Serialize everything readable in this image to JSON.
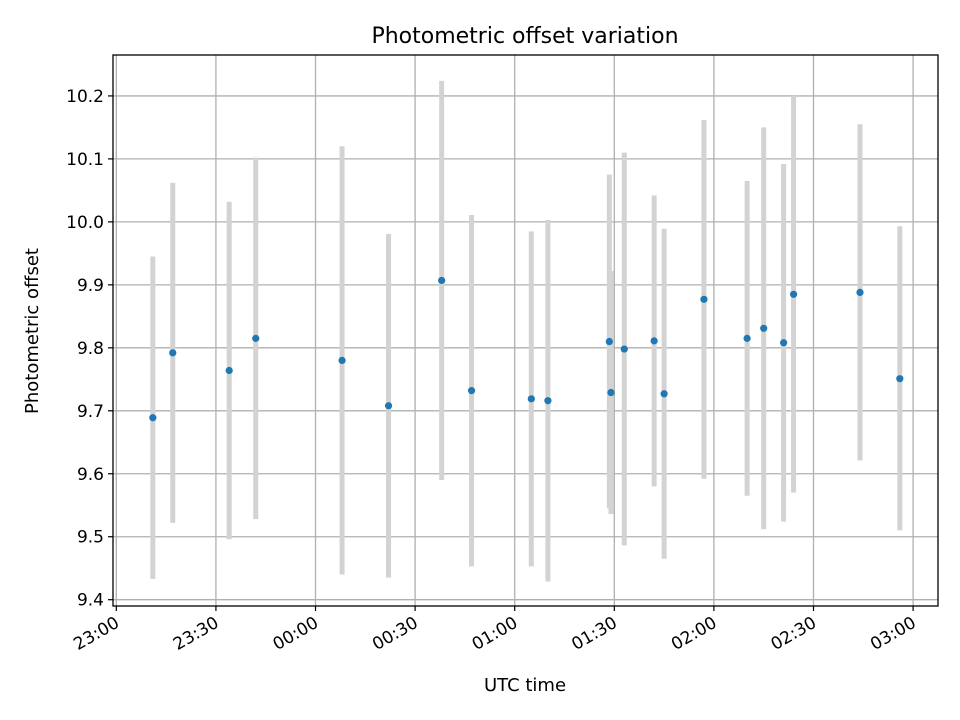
{
  "chart_data": {
    "type": "scatter",
    "title": "Photometric offset variation",
    "xlabel": "UTC time",
    "ylabel": "Photometric offset",
    "grid": true,
    "xlim": [
      "2000-01-01T22:59:00",
      "2000-01-02T03:07:30"
    ],
    "ylim": [
      9.39,
      10.265
    ],
    "x_ticks": [
      {
        "t": "2000-01-01T23:00:00",
        "label": "23:00"
      },
      {
        "t": "2000-01-01T23:30:00",
        "label": "23:30"
      },
      {
        "t": "2000-01-02T00:00:00",
        "label": "00:00"
      },
      {
        "t": "2000-01-02T00:30:00",
        "label": "00:30"
      },
      {
        "t": "2000-01-02T01:00:00",
        "label": "01:00"
      },
      {
        "t": "2000-01-02T01:30:00",
        "label": "01:30"
      },
      {
        "t": "2000-01-02T02:00:00",
        "label": "02:00"
      },
      {
        "t": "2000-01-02T02:30:00",
        "label": "02:30"
      },
      {
        "t": "2000-01-02T03:00:00",
        "label": "03:00"
      }
    ],
    "y_ticks": [
      {
        "v": 9.4,
        "label": "9.4"
      },
      {
        "v": 9.5,
        "label": "9.5"
      },
      {
        "v": 9.6,
        "label": "9.6"
      },
      {
        "v": 9.7,
        "label": "9.7"
      },
      {
        "v": 9.8,
        "label": "9.8"
      },
      {
        "v": 9.9,
        "label": "9.9"
      },
      {
        "v": 10.0,
        "label": "10.0"
      },
      {
        "v": 10.1,
        "label": "10.1"
      },
      {
        "v": 10.2,
        "label": "10.2"
      }
    ],
    "points": [
      {
        "t": "2000-01-01T23:11:00",
        "y": 9.689,
        "y_low": 9.433,
        "y_high": 9.945
      },
      {
        "t": "2000-01-01T23:17:00",
        "y": 9.792,
        "y_low": 9.522,
        "y_high": 10.062
      },
      {
        "t": "2000-01-01T23:34:00",
        "y": 9.764,
        "y_low": 9.496,
        "y_high": 10.032
      },
      {
        "t": "2000-01-01T23:42:00",
        "y": 9.815,
        "y_low": 9.528,
        "y_high": 10.102
      },
      {
        "t": "2000-01-02T00:08:00",
        "y": 9.78,
        "y_low": 9.44,
        "y_high": 10.12
      },
      {
        "t": "2000-01-02T00:22:00",
        "y": 9.708,
        "y_low": 9.435,
        "y_high": 9.981
      },
      {
        "t": "2000-01-02T00:38:00",
        "y": 9.907,
        "y_low": 9.59,
        "y_high": 10.224
      },
      {
        "t": "2000-01-02T00:47:00",
        "y": 9.732,
        "y_low": 9.453,
        "y_high": 10.011
      },
      {
        "t": "2000-01-02T01:05:00",
        "y": 9.719,
        "y_low": 9.453,
        "y_high": 9.985
      },
      {
        "t": "2000-01-02T01:10:00",
        "y": 9.716,
        "y_low": 9.429,
        "y_high": 10.003
      },
      {
        "t": "2000-01-02T01:28:30",
        "y": 9.81,
        "y_low": 9.545,
        "y_high": 10.075
      },
      {
        "t": "2000-01-02T01:29:00",
        "y": 9.729,
        "y_low": 9.536,
        "y_high": 9.922
      },
      {
        "t": "2000-01-02T01:33:00",
        "y": 9.798,
        "y_low": 9.486,
        "y_high": 10.11
      },
      {
        "t": "2000-01-02T01:42:00",
        "y": 9.811,
        "y_low": 9.58,
        "y_high": 10.042
      },
      {
        "t": "2000-01-02T01:45:00",
        "y": 9.727,
        "y_low": 9.465,
        "y_high": 9.989
      },
      {
        "t": "2000-01-02T01:57:00",
        "y": 9.877,
        "y_low": 9.592,
        "y_high": 10.162
      },
      {
        "t": "2000-01-02T02:10:00",
        "y": 9.815,
        "y_low": 9.565,
        "y_high": 10.065
      },
      {
        "t": "2000-01-02T02:15:00",
        "y": 9.831,
        "y_low": 9.512,
        "y_high": 10.15
      },
      {
        "t": "2000-01-02T02:21:00",
        "y": 9.808,
        "y_low": 9.524,
        "y_high": 10.092
      },
      {
        "t": "2000-01-02T02:24:00",
        "y": 9.885,
        "y_low": 9.57,
        "y_high": 10.2
      },
      {
        "t": "2000-01-02T02:44:00",
        "y": 9.888,
        "y_low": 9.621,
        "y_high": 10.155
      },
      {
        "t": "2000-01-02T02:56:00",
        "y": 9.751,
        "y_low": 9.51,
        "y_high": 9.993
      }
    ],
    "colors": {
      "point": "#1f77b4",
      "errorbar": "#d3d3d3",
      "grid": "#b0b0b0",
      "frame": "#000000"
    }
  }
}
